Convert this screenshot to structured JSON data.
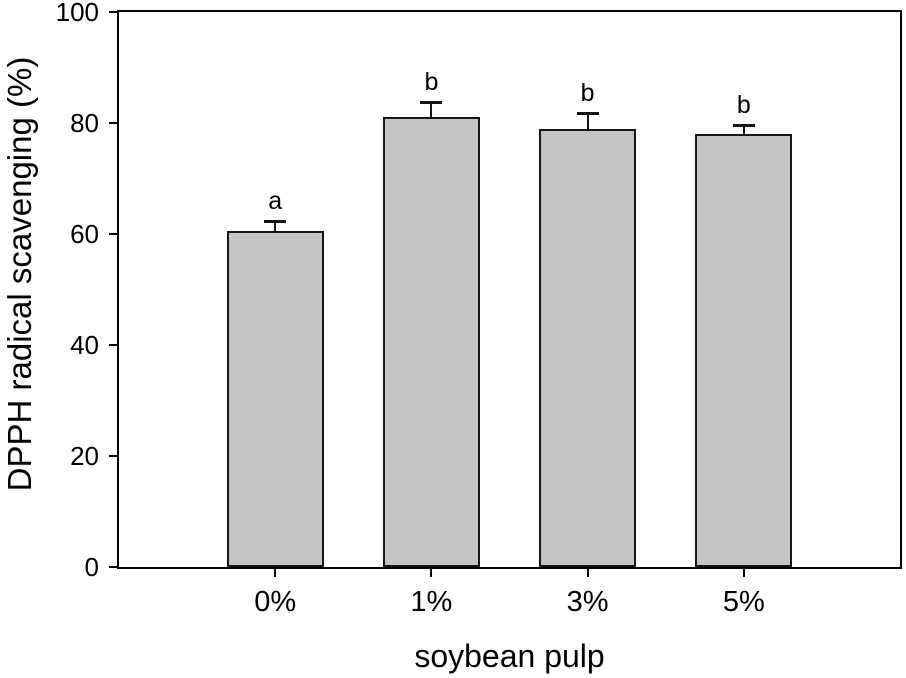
{
  "chart_data": {
    "type": "bar",
    "title": "",
    "categories": [
      "0%",
      "1%",
      "3%",
      "5%"
    ],
    "values": [
      60.5,
      81,
      79,
      78
    ],
    "errors_up": [
      2,
      3,
      3,
      1.8
    ],
    "significance_letters": [
      "a",
      "b",
      "b",
      "b"
    ],
    "xlabel": "soybean pulp",
    "ylabel": "DPPH radical scavenging (%)",
    "ylim": [
      0,
      100
    ],
    "ytick_values": [
      0,
      20,
      40,
      60,
      80,
      100
    ],
    "ytick_labels": [
      "0",
      "20",
      "40",
      "60",
      "80",
      "100"
    ],
    "grid": false,
    "legend": "none",
    "error_bars": "upper-only",
    "colors": {
      "bar_fill": "#c5c5c5",
      "bar_border": "#151515",
      "axis": "#000000",
      "text": "#000000",
      "background": "#ffffff"
    }
  }
}
